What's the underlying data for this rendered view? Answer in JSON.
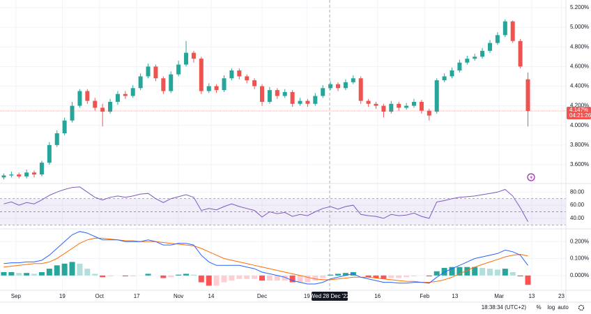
{
  "chart_data": [
    {
      "type": "candlestick",
      "up_color": "#26a69a",
      "down_color": "#ef5350",
      "open": [
        3.47,
        3.49,
        3.5,
        3.48,
        3.52,
        3.5,
        3.62,
        3.8,
        3.92,
        4.05,
        4.2,
        4.35,
        4.25,
        4.18,
        4.14,
        4.24,
        4.32,
        4.3,
        4.38,
        4.5,
        4.6,
        4.48,
        4.35,
        4.52,
        4.62,
        4.74,
        4.68,
        4.35,
        4.4,
        4.36,
        4.48,
        4.56,
        4.5,
        4.46,
        4.4,
        4.24,
        4.36,
        4.3,
        4.34,
        4.22,
        4.25,
        4.22,
        4.3,
        4.38,
        4.42,
        4.38,
        4.44,
        4.48,
        4.25,
        4.22,
        4.2,
        4.14,
        4.22,
        4.18,
        4.2,
        4.24,
        4.15,
        4.14,
        4.46,
        4.5,
        4.56,
        4.64,
        4.68,
        4.7,
        4.76,
        4.84,
        4.92,
        5.06,
        4.86,
        4.47
      ],
      "high": [
        3.51,
        3.53,
        3.52,
        3.55,
        3.54,
        3.64,
        3.83,
        3.95,
        4.08,
        4.24,
        4.37,
        4.37,
        4.28,
        4.22,
        4.27,
        4.35,
        4.35,
        4.41,
        4.53,
        4.63,
        4.62,
        4.5,
        4.55,
        4.66,
        4.86,
        4.76,
        4.7,
        4.43,
        4.42,
        4.51,
        4.58,
        4.58,
        4.52,
        4.48,
        4.42,
        4.39,
        4.38,
        4.37,
        4.36,
        4.28,
        4.27,
        4.33,
        4.41,
        4.45,
        4.44,
        4.47,
        4.51,
        4.5,
        4.27,
        4.24,
        4.22,
        4.25,
        4.24,
        4.23,
        4.27,
        4.26,
        4.17,
        4.48,
        4.53,
        4.59,
        4.67,
        4.71,
        4.73,
        4.79,
        4.87,
        4.95,
        5.08,
        5.07,
        4.88,
        4.54
      ],
      "low": [
        3.45,
        3.47,
        3.46,
        3.46,
        3.47,
        3.48,
        3.6,
        3.78,
        3.9,
        4.03,
        4.18,
        4.22,
        4.15,
        3.99,
        4.12,
        4.21,
        4.27,
        4.28,
        4.36,
        4.48,
        4.45,
        4.32,
        4.33,
        4.5,
        4.6,
        4.64,
        4.32,
        4.33,
        4.33,
        4.34,
        4.46,
        4.47,
        4.43,
        4.37,
        4.2,
        4.22,
        4.27,
        4.28,
        4.19,
        4.2,
        4.19,
        4.2,
        4.28,
        4.36,
        4.35,
        4.36,
        4.42,
        4.22,
        4.19,
        4.17,
        4.08,
        4.12,
        4.15,
        4.16,
        4.18,
        4.12,
        4.05,
        4.12,
        4.44,
        4.48,
        4.54,
        4.62,
        4.66,
        4.68,
        4.74,
        4.82,
        4.9,
        4.84,
        4.58,
        3.99
      ],
      "close": [
        3.49,
        3.5,
        3.48,
        3.52,
        3.5,
        3.62,
        3.8,
        3.92,
        4.05,
        4.2,
        4.35,
        4.25,
        4.18,
        4.14,
        4.24,
        4.32,
        4.3,
        4.38,
        4.5,
        4.6,
        4.48,
        4.35,
        4.52,
        4.62,
        4.74,
        4.68,
        4.35,
        4.4,
        4.36,
        4.48,
        4.56,
        4.5,
        4.46,
        4.4,
        4.24,
        4.36,
        4.3,
        4.34,
        4.22,
        4.25,
        4.22,
        4.3,
        4.38,
        4.42,
        4.38,
        4.44,
        4.48,
        4.25,
        4.22,
        4.2,
        4.14,
        4.22,
        4.18,
        4.2,
        4.24,
        4.15,
        4.1,
        4.46,
        4.5,
        4.56,
        4.64,
        4.68,
        4.7,
        4.76,
        4.84,
        4.92,
        5.06,
        4.86,
        4.6,
        4.147
      ],
      "ylim": [
        3.415,
        5.278
      ],
      "yticks": [
        {
          "value": 3.6,
          "label": "3.600%"
        },
        {
          "value": 3.8,
          "label": "3.800%"
        },
        {
          "value": 4.0,
          "label": "4.000%"
        },
        {
          "value": 4.2,
          "label": "4.200%"
        },
        {
          "value": 4.4,
          "label": "4.400%"
        },
        {
          "value": 4.6,
          "label": "4.600%"
        },
        {
          "value": 4.8,
          "label": "4.800%"
        },
        {
          "value": 5.0,
          "label": "5.000%"
        },
        {
          "value": 5.2,
          "label": "5.200%"
        }
      ],
      "last_price": {
        "value": 4.147,
        "label": "4.147%"
      },
      "countdown": "04:21:26"
    },
    {
      "type": "line",
      "color": "#7e57c2",
      "values": [
        62,
        65,
        60,
        64,
        62,
        68,
        75,
        80,
        84,
        87,
        88,
        80,
        72,
        68,
        72,
        74,
        72,
        74,
        77,
        78,
        70,
        64,
        70,
        73,
        76,
        72,
        52,
        55,
        53,
        58,
        62,
        58,
        55,
        52,
        42,
        50,
        47,
        49,
        43,
        46,
        44,
        50,
        55,
        58,
        54,
        58,
        60,
        46,
        44,
        43,
        40,
        46,
        44,
        45,
        48,
        43,
        40,
        65,
        67,
        70,
        72,
        73,
        74,
        76,
        78,
        80,
        84,
        74,
        56,
        35
      ],
      "ylim": [
        25,
        92
      ],
      "yticks": [
        {
          "value": 40,
          "label": "40.00"
        },
        {
          "value": 60,
          "label": "60.00"
        },
        {
          "value": 80,
          "label": "80.00"
        }
      ],
      "levels": [
        30,
        50,
        70
      ],
      "band_color": "#7e57c2"
    },
    {
      "type": "macd",
      "macd": [
        0.07,
        0.075,
        0.075,
        0.08,
        0.08,
        0.09,
        0.12,
        0.16,
        0.2,
        0.24,
        0.26,
        0.25,
        0.23,
        0.21,
        0.21,
        0.21,
        0.2,
        0.2,
        0.2,
        0.21,
        0.2,
        0.18,
        0.18,
        0.19,
        0.19,
        0.18,
        0.12,
        0.08,
        0.06,
        0.06,
        0.06,
        0.06,
        0.05,
        0.04,
        0.02,
        0.01,
        0.0,
        -0.01,
        -0.03,
        -0.04,
        -0.05,
        -0.05,
        -0.04,
        -0.02,
        -0.01,
        0.0,
        0.01,
        -0.01,
        -0.02,
        -0.03,
        -0.04,
        -0.04,
        -0.045,
        -0.045,
        -0.04,
        -0.04,
        -0.045,
        -0.01,
        0.02,
        0.04,
        0.06,
        0.08,
        0.1,
        0.11,
        0.12,
        0.13,
        0.15,
        0.14,
        0.12,
        0.06
      ],
      "signal": [
        0.05,
        0.055,
        0.06,
        0.065,
        0.07,
        0.07,
        0.08,
        0.1,
        0.13,
        0.16,
        0.19,
        0.21,
        0.22,
        0.22,
        0.215,
        0.21,
        0.205,
        0.205,
        0.2,
        0.2,
        0.2,
        0.195,
        0.19,
        0.185,
        0.18,
        0.175,
        0.16,
        0.14,
        0.12,
        0.1,
        0.09,
        0.08,
        0.07,
        0.06,
        0.05,
        0.04,
        0.03,
        0.02,
        0.01,
        0.0,
        -0.01,
        -0.02,
        -0.025,
        -0.025,
        -0.02,
        -0.015,
        -0.01,
        -0.01,
        -0.01,
        -0.015,
        -0.02,
        -0.025,
        -0.03,
        -0.035,
        -0.035,
        -0.04,
        -0.04,
        -0.035,
        -0.025,
        -0.01,
        0.01,
        0.03,
        0.05,
        0.065,
        0.08,
        0.095,
        0.11,
        0.12,
        0.125,
        0.115
      ],
      "histogram": [
        0.02,
        0.02,
        0.015,
        0.015,
        0.01,
        0.02,
        0.04,
        0.06,
        0.07,
        0.08,
        0.07,
        0.04,
        0.01,
        -0.01,
        -0.005,
        0,
        -0.005,
        -0.005,
        0,
        0.01,
        0,
        -0.015,
        -0.01,
        0.005,
        0.01,
        0.005,
        -0.04,
        -0.06,
        -0.06,
        -0.04,
        -0.03,
        -0.02,
        -0.02,
        -0.02,
        -0.03,
        -0.03,
        -0.03,
        -0.03,
        -0.04,
        -0.04,
        -0.04,
        -0.03,
        -0.015,
        0.005,
        0.01,
        0.015,
        0.02,
        0,
        -0.01,
        -0.015,
        -0.02,
        -0.015,
        -0.015,
        -0.01,
        -0.005,
        0,
        -0.005,
        0.025,
        0.045,
        0.05,
        0.05,
        0.05,
        0.05,
        0.045,
        0.04,
        0.035,
        0.04,
        0.02,
        -0.005,
        -0.055
      ],
      "macd_color": "#2962ff",
      "signal_color": "#ff6d00",
      "hist_colors": [
        "#26a69a",
        "#b2dfdb",
        "#ffcdd2",
        "#ff5252"
      ],
      "ylim": [
        -0.083,
        0.271
      ],
      "yticks": [
        {
          "value": 0,
          "label": "0.000%"
        },
        {
          "value": 0.1,
          "label": "0.100%"
        },
        {
          "value": 0.2,
          "label": "0.200%"
        }
      ],
      "xlim": [
        -0.5,
        74
      ],
      "xticks": [
        {
          "value": 1.6,
          "label": "Sep"
        },
        {
          "value": 7.7,
          "label": "19"
        },
        {
          "value": 12.6,
          "label": "Oct"
        },
        {
          "value": 17.5,
          "label": "17"
        },
        {
          "value": 23,
          "label": "Nov"
        },
        {
          "value": 27.3,
          "label": "14"
        },
        {
          "value": 34,
          "label": "Dec"
        },
        {
          "value": 39.9,
          "label": "19"
        },
        {
          "value": 49.2,
          "label": "16"
        },
        {
          "value": 55.4,
          "label": "Feb"
        },
        {
          "value": 59.4,
          "label": "13"
        },
        {
          "value": 65.2,
          "label": "Mar"
        },
        {
          "value": 69.5,
          "label": "13"
        },
        {
          "value": 73.4,
          "label": "23"
        }
      ],
      "crosshair": {
        "value": 42.9,
        "label": "Wed 28 Dec '22"
      }
    }
  ],
  "toolbar": {
    "time": "18:38:34 (UTC+2)",
    "buttons": [
      "%",
      "log",
      "auto"
    ]
  }
}
